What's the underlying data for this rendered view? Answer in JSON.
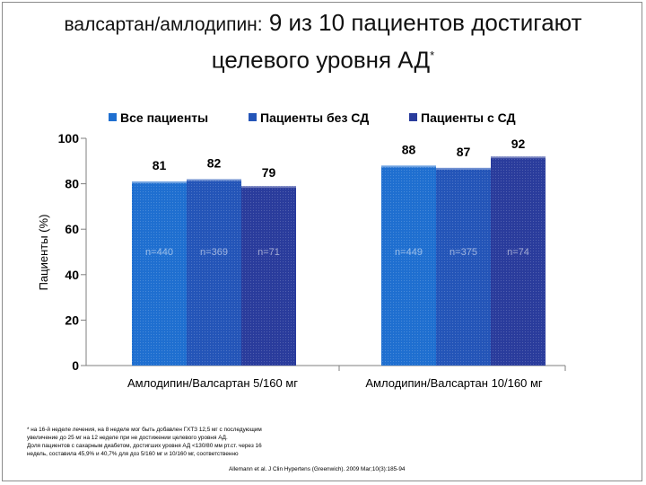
{
  "title": {
    "part1": "валсартан/амлодипин:",
    "part2": " 9 из 10 пациентов достигают",
    "line2": "целевого уровня АД",
    "mark": "*"
  },
  "chart_data": {
    "type": "bar",
    "categories": [
      "Амлодипин/Валсартан 5/160 мг",
      "Амлодипин/Валсартан 10/160 мг"
    ],
    "series": [
      {
        "name": "Все пациенты",
        "values": [
          81,
          88
        ],
        "n_labels": [
          "n=440",
          "n=449"
        ],
        "color": "#1f6fd0"
      },
      {
        "name": "Пациенты без СД",
        "values": [
          82,
          87
        ],
        "n_labels": [
          "n=369",
          "n=375"
        ],
        "color": "#2455b8"
      },
      {
        "name": "Пациенты с СД",
        "values": [
          79,
          92
        ],
        "n_labels": [
          "n=71",
          "n=74"
        ],
        "color": "#2a3c9c"
      }
    ],
    "ylabel": "Пациенты (%)",
    "xlabel": "",
    "ylim": [
      0,
      100
    ],
    "yticks": [
      0,
      20,
      40,
      60,
      80,
      100
    ],
    "grid": false,
    "legend": "top"
  },
  "footnote": {
    "lines": [
      "* на 16-й неделе лечения, на 8 неделе мог быть добавлен ГХТЗ 12,5 мг с последующим",
      "увеличение до 25 мг на 12 неделе при не достижении целевого уровня АД.",
      "Доля пациентов с сахарным диабетом, достигших уровня АД <130/80 мм рт.ст. через 16",
      "недель, составила 45,9% и 40,7% для доз 5/160 мг и 10/160 мг, соответственно"
    ],
    "citation": "Allemann et al. J Clin Hypertens (Greenwich). 2009 Mar;10(3):185-94"
  }
}
